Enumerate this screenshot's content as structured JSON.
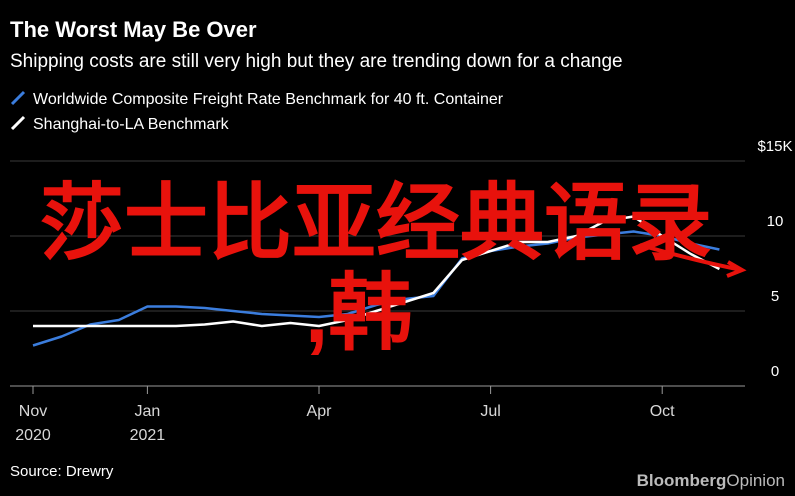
{
  "chart_data": {
    "type": "line",
    "title": "The Worst May Be Over",
    "subtitle": "Shipping costs are still very high but they are trending down for a change",
    "source": "Source: Drewry",
    "brand": [
      "Bloomberg",
      "Opinion"
    ],
    "overlay_text": [
      "莎士比亚经典语录",
      ",韩"
    ],
    "categories": [
      "Nov 2020",
      null,
      null,
      null,
      "Jan 2021",
      null,
      null,
      null,
      null,
      null,
      "Apr",
      null,
      null,
      null,
      null,
      null,
      "Jul",
      null,
      null,
      null,
      null,
      null,
      "Oct",
      null,
      null
    ],
    "series": [
      {
        "name": "Worldwide Composite Freight Rate Benchmark for 40 ft. Container",
        "color": "#3b7ddd",
        "values": [
          2.7,
          3.3,
          4.1,
          4.4,
          5.3,
          5.3,
          5.2,
          5.0,
          4.8,
          4.7,
          4.6,
          4.8,
          5.4,
          5.8,
          6.0,
          8.5,
          9.0,
          9.3,
          9.5,
          9.9,
          10.1,
          10.3,
          10.0,
          9.5,
          9.1
        ]
      },
      {
        "name": "Shanghai-to-LA Benchmark",
        "color": "#ffffff",
        "values": [
          4.0,
          4.0,
          4.0,
          4.0,
          4.0,
          4.0,
          4.1,
          4.3,
          4.0,
          4.2,
          4.0,
          4.4,
          5.0,
          5.6,
          6.2,
          8.4,
          9.0,
          9.6,
          9.6,
          10.0,
          11.0,
          11.3,
          10.0,
          8.8,
          7.8
        ]
      }
    ],
    "ylim": [
      0,
      15
    ],
    "yticks": [
      0,
      5,
      10,
      {
        "value": 15,
        "label": "$15K"
      }
    ],
    "grid": true
  }
}
